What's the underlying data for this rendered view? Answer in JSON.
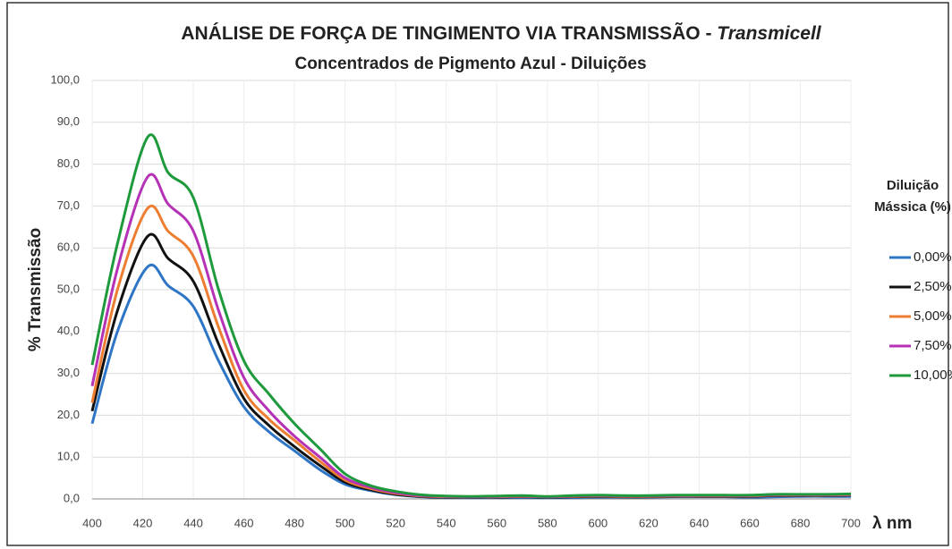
{
  "chart_data": {
    "type": "line",
    "title": "ANÁLISE DE FORÇA DE TINGIMENTO VIA TRANSMISSÃO -",
    "title_emphasis": "Transmicell",
    "subtitle": "Concentrados de Pigmento Azul - Diluições",
    "ylabel": "% Transmissão",
    "xlabel": "λ nm",
    "legend_title": [
      "Diluição",
      "Mássica (%)"
    ],
    "legend": "right",
    "grid": true,
    "x": [
      400,
      410,
      422,
      430,
      440,
      450,
      460,
      470,
      480,
      490,
      500,
      510,
      520,
      530,
      540,
      550,
      560,
      570,
      580,
      590,
      600,
      610,
      620,
      630,
      640,
      650,
      660,
      670,
      680,
      690,
      700
    ],
    "xlim": [
      400,
      700
    ],
    "xticks": [
      400,
      420,
      440,
      460,
      480,
      500,
      520,
      540,
      560,
      580,
      600,
      620,
      640,
      660,
      680,
      700
    ],
    "ylim": [
      0,
      100
    ],
    "yticks": [
      {
        "value": 0,
        "label": "0,0"
      },
      {
        "value": 10,
        "label": "10,0"
      },
      {
        "value": 20,
        "label": "20,0"
      },
      {
        "value": 30,
        "label": "30,0"
      },
      {
        "value": 40,
        "label": "40,0"
      },
      {
        "value": 50,
        "label": "50,0"
      },
      {
        "value": 60,
        "label": "60,0"
      },
      {
        "value": 70,
        "label": "70,0"
      },
      {
        "value": 80,
        "label": "80,0"
      },
      {
        "value": 90,
        "label": "90,0"
      },
      {
        "value": 100,
        "label": "100,0"
      }
    ],
    "series": [
      {
        "name": "0,00%",
        "color": "#2e75c6",
        "values": [
          18,
          40,
          55.5,
          51,
          46,
          33,
          22,
          16,
          11.5,
          7,
          3.5,
          2,
          1,
          0.5,
          0.3,
          0.3,
          0.3,
          0.3,
          0.3,
          0.3,
          0.4,
          0.4,
          0.4,
          0.5,
          0.5,
          0.5,
          0.4,
          0.5,
          0.6,
          0.6,
          0.6
        ]
      },
      {
        "name": "2,50%",
        "color": "#111111",
        "values": [
          21,
          45,
          62.8,
          57.5,
          52,
          37,
          24,
          17.5,
          12.5,
          8,
          4,
          2.2,
          1.1,
          0.6,
          0.4,
          0.4,
          0.4,
          0.5,
          0.4,
          0.5,
          0.6,
          0.5,
          0.5,
          0.6,
          0.6,
          0.6,
          0.6,
          0.8,
          0.8,
          0.8,
          0.9
        ]
      },
      {
        "name": "5,00%",
        "color": "#ed7d31",
        "values": [
          23,
          50,
          69.5,
          64,
          58,
          41,
          26,
          19,
          14,
          9,
          4.5,
          2.5,
          1.3,
          0.7,
          0.5,
          0.5,
          0.5,
          0.6,
          0.5,
          0.6,
          0.7,
          0.6,
          0.6,
          0.7,
          0.7,
          0.7,
          0.7,
          0.9,
          0.9,
          0.9,
          1.0
        ]
      },
      {
        "name": "7,50%",
        "color": "#b531b5",
        "values": [
          27,
          55,
          77,
          70.5,
          64,
          45,
          29,
          21,
          15,
          10,
          5,
          2.8,
          1.5,
          0.8,
          0.6,
          0.5,
          0.6,
          0.7,
          0.5,
          0.7,
          0.8,
          0.7,
          0.7,
          0.8,
          0.8,
          0.8,
          0.8,
          1.0,
          1.0,
          1.0,
          1.1
        ]
      },
      {
        "name": "10,00%",
        "color": "#1e9a3c",
        "values": [
          32,
          61,
          86.5,
          78,
          72,
          50,
          33,
          25,
          18,
          12,
          6,
          3.2,
          1.8,
          1.0,
          0.7,
          0.6,
          0.7,
          0.8,
          0.6,
          0.8,
          0.9,
          0.8,
          0.8,
          0.9,
          0.9,
          0.9,
          0.9,
          1.1,
          1.1,
          1.1,
          1.2
        ]
      }
    ]
  }
}
